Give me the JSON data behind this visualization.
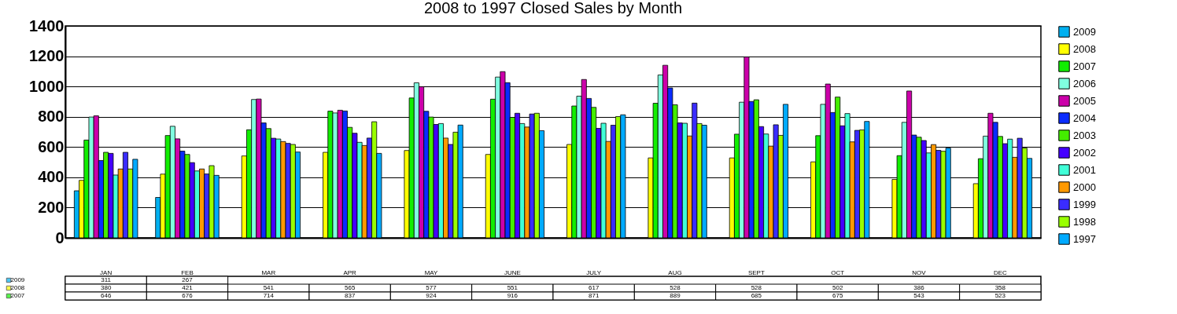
{
  "chart_data": {
    "type": "bar",
    "title": "2008 to 1997 Closed Sales by Month",
    "categories": [
      "JAN",
      "FEB",
      "MAR",
      "APR",
      "MAY",
      "JUNE",
      "JULY",
      "AUG",
      "SEPT",
      "OCT",
      "NOV",
      "DEC"
    ],
    "series": [
      {
        "name": "2009",
        "color": "#00b0f0",
        "values": [
          311,
          267,
          null,
          null,
          null,
          null,
          null,
          null,
          null,
          null,
          null,
          null
        ],
        "value_labels": [
          "311",
          "267",
          null,
          null,
          null,
          null,
          null,
          null,
          null,
          null,
          null,
          null
        ]
      },
      {
        "name": "2008",
        "color": "#ffff00",
        "values": [
          380,
          421,
          541,
          565,
          577,
          551,
          617,
          528,
          528,
          502,
          386,
          358
        ],
        "value_labels": [
          "380",
          "421",
          "541",
          "565",
          "577",
          "551",
          "617",
          "528",
          "528",
          "502",
          "386",
          "358"
        ]
      },
      {
        "name": "2007",
        "color": "#11ee00",
        "values": [
          646,
          676,
          714,
          837,
          924,
          916,
          871,
          889,
          685,
          675,
          543,
          523
        ],
        "value_labels": [
          "646",
          "676",
          "714",
          "837",
          "924",
          "916",
          "871",
          "889",
          "685",
          "675",
          "543",
          "523"
        ]
      },
      {
        "name": "2006",
        "color": "#80ffe0",
        "values": [
          798,
          737,
          914,
          825,
          1024,
          1062,
          936,
          1076,
          896,
          882,
          763,
          672
        ]
      },
      {
        "name": "2005",
        "color": "#cc00aa",
        "values": [
          806,
          654,
          917,
          843,
          998,
          1098,
          1046,
          1140,
          1195,
          1016,
          970,
          823
        ]
      },
      {
        "name": "2004",
        "color": "#0a2cff",
        "values": [
          511,
          573,
          759,
          838,
          836,
          1025,
          921,
          990,
          901,
          828,
          679,
          763
        ]
      },
      {
        "name": "2003",
        "color": "#44ee00",
        "values": [
          565,
          551,
          722,
          730,
          798,
          796,
          862,
          879,
          912,
          930,
          665,
          670
        ]
      },
      {
        "name": "2002",
        "color": "#4400ff",
        "values": [
          558,
          497,
          658,
          691,
          749,
          823,
          723,
          759,
          735,
          740,
          643,
          622
        ]
      },
      {
        "name": "2001",
        "color": "#40ffd8",
        "values": [
          415,
          442,
          653,
          631,
          755,
          755,
          757,
          757,
          686,
          821,
          561,
          652
        ]
      },
      {
        "name": "2000",
        "color": "#ff9900",
        "values": [
          455,
          455,
          636,
          610,
          659,
          732,
          637,
          673,
          606,
          634,
          616,
          532
        ]
      },
      {
        "name": "1999",
        "color": "#3a2cff",
        "values": [
          565,
          422,
          624,
          659,
          617,
          818,
          744,
          890,
          747,
          710,
          578,
          658
        ]
      },
      {
        "name": "1998",
        "color": "#99ff00",
        "values": [
          455,
          477,
          617,
          767,
          698,
          823,
          801,
          755,
          677,
          713,
          572,
          593
        ]
      },
      {
        "name": "1997",
        "color": "#00aaff",
        "values": [
          519,
          413,
          567,
          558,
          745,
          708,
          813,
          744,
          882,
          769,
          593,
          525
        ]
      }
    ],
    "ylim": [
      0,
      1400
    ],
    "yticks": [
      0,
      200,
      400,
      600,
      800,
      1000,
      1200,
      1400
    ],
    "grid": "y",
    "legend": "right",
    "tick_labels": "y"
  }
}
